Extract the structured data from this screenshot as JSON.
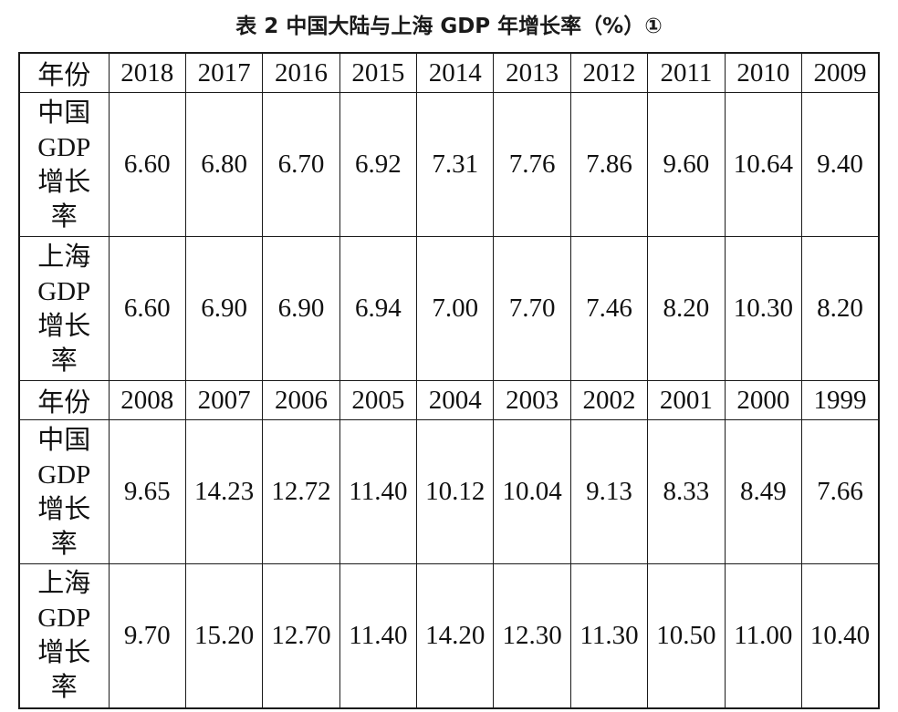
{
  "title": "表 2  中国大陆与上海 GDP 年增长率（%）①",
  "table": {
    "blocks": [
      {
        "header_label": "年份",
        "years": [
          "2018",
          "2017",
          "2016",
          "2015",
          "2014",
          "2013",
          "2012",
          "2011",
          "2010",
          "2009"
        ],
        "rows": [
          {
            "label_lines": [
              "中国",
              "GDP",
              "增长",
              "率"
            ],
            "values": [
              "6.60",
              "6.80",
              "6.70",
              "6.92",
              "7.31",
              "7.76",
              "7.86",
              "9.60",
              "10.64",
              "9.40"
            ]
          },
          {
            "label_lines": [
              "上海",
              "GDP",
              "增长",
              "率"
            ],
            "values": [
              "6.60",
              "6.90",
              "6.90",
              "6.94",
              "7.00",
              "7.70",
              "7.46",
              "8.20",
              "10.30",
              "8.20"
            ]
          }
        ]
      },
      {
        "header_label": "年份",
        "years": [
          "2008",
          "2007",
          "2006",
          "2005",
          "2004",
          "2003",
          "2002",
          "2001",
          "2000",
          "1999"
        ],
        "rows": [
          {
            "label_lines": [
              "中国",
              "GDP",
              "增长",
              "率"
            ],
            "values": [
              "9.65",
              "14.23",
              "12.72",
              "11.40",
              "10.12",
              "10.04",
              "9.13",
              "8.33",
              "8.49",
              "7.66"
            ]
          },
          {
            "label_lines": [
              "上海",
              "GDP",
              "增长",
              "率"
            ],
            "values": [
              "9.70",
              "15.20",
              "12.70",
              "11.40",
              "14.20",
              "12.30",
              "11.30",
              "10.50",
              "11.00",
              "10.40"
            ]
          }
        ]
      }
    ]
  }
}
